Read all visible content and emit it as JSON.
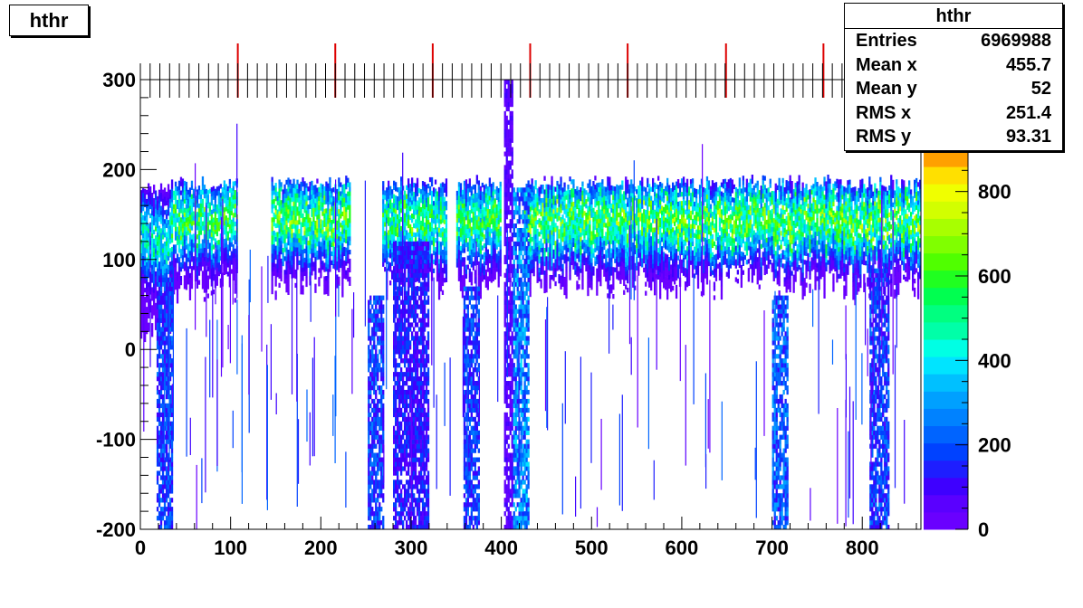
{
  "title": "hthr",
  "stats": {
    "title": "hthr",
    "rows": [
      {
        "label": "Entries",
        "value": "6969988"
      },
      {
        "label": "Mean x",
        "value": "455.7"
      },
      {
        "label": "Mean y",
        "value": "52"
      },
      {
        "label": "RMS x",
        "value": "251.4"
      },
      {
        "label": "RMS y",
        "value": "93.31"
      }
    ]
  },
  "colors": {
    "palette": [
      "#6a00ff",
      "#5a00ff",
      "#3e00ff",
      "#1e1eff",
      "#0042ff",
      "#0064ff",
      "#0082ff",
      "#00a0ff",
      "#00c0ff",
      "#00e4ff",
      "#00ffe4",
      "#00ffa8",
      "#00ff80",
      "#00ff50",
      "#20ff20",
      "#50ff00",
      "#80ff00",
      "#a8ff00",
      "#d2ff00",
      "#f0ff00",
      "#ffe000",
      "#ffa000"
    ]
  },
  "chart_data": {
    "type": "heatmap",
    "title": "hthr",
    "xlim": [
      0,
      865
    ],
    "ylim": [
      -200,
      300
    ],
    "zlim": [
      0,
      900
    ],
    "xticks": [
      "0",
      "100",
      "200",
      "300",
      "400",
      "500",
      "600",
      "700",
      "800"
    ],
    "yticks": [
      "-200",
      "-100",
      "0",
      "100",
      "200",
      "300"
    ],
    "zticks": [
      "0",
      "200",
      "400",
      "600",
      "800"
    ],
    "markers_x": [
      108,
      216,
      324,
      432,
      540,
      649,
      757,
      865
    ],
    "bands": [
      {
        "x": [
          0,
          34
        ],
        "ylo": 20,
        "yhi": 185,
        "core": 120,
        "peak": 500
      },
      {
        "x": [
          34,
          108
        ],
        "ylo": 70,
        "yhi": 190,
        "core": 140,
        "peak": 600
      },
      {
        "x": [
          145,
          232
        ],
        "ylo": 75,
        "yhi": 190,
        "core": 140,
        "peak": 650
      },
      {
        "x": [
          268,
          340
        ],
        "ylo": 75,
        "yhi": 190,
        "core": 140,
        "peak": 600
      },
      {
        "x": [
          350,
          400
        ],
        "ylo": 75,
        "yhi": 190,
        "core": 140,
        "peak": 600
      },
      {
        "x": [
          425,
          865
        ],
        "ylo": 75,
        "yhi": 190,
        "core": 140,
        "peak": 650
      }
    ],
    "columns": [
      {
        "x": [
          18,
          35
        ],
        "ylo": -200,
        "yhi": 80,
        "level": 200
      },
      {
        "x": [
          252,
          270
        ],
        "ylo": -200,
        "yhi": 60,
        "level": 200
      },
      {
        "x": [
          280,
          320
        ],
        "ylo": -200,
        "yhi": 120,
        "level": 150
      },
      {
        "x": [
          358,
          375
        ],
        "ylo": -200,
        "yhi": 70,
        "level": 200
      },
      {
        "x": [
          403,
          413
        ],
        "ylo": -200,
        "yhi": 300,
        "level": 80
      },
      {
        "x": [
          413,
          430
        ],
        "ylo": -200,
        "yhi": 180,
        "level": 300
      },
      {
        "x": [
          700,
          718
        ],
        "ylo": -200,
        "yhi": 60,
        "level": 250
      },
      {
        "x": [
          808,
          830
        ],
        "ylo": -200,
        "yhi": 90,
        "level": 200
      }
    ]
  }
}
